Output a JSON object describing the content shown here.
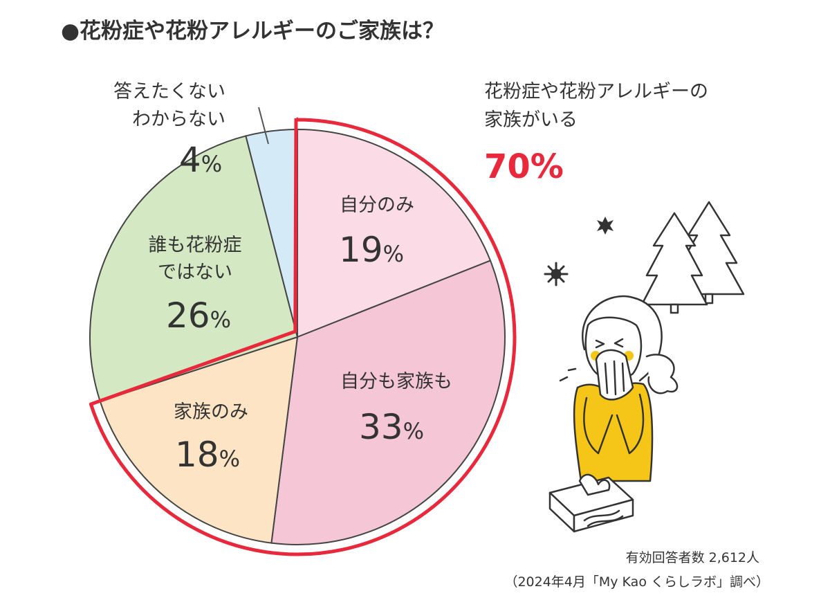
{
  "chart_data": {
    "type": "pie",
    "title": "●花粉症や花粉アレルギーのご家族は？",
    "slices": [
      {
        "label": "自分のみ",
        "value": 19,
        "value_label": "19",
        "color": "#fadbe6"
      },
      {
        "label": "自分も家族も",
        "value": 33,
        "value_label": "33",
        "color": "#f4c6d6"
      },
      {
        "label": "家族のみ",
        "value": 18,
        "value_label": "18",
        "color": "#fce4c4"
      },
      {
        "label": "誰も花粉症ではない",
        "label_lines": [
          "誰も花粉症",
          "ではない"
        ],
        "value": 26,
        "value_label": "26",
        "color": "#d3e8c3"
      },
      {
        "label": "答えたくないわからない",
        "label_lines": [
          "答えたくない",
          "わからない"
        ],
        "value": 4,
        "value_label": "4",
        "color": "#d4eaf7"
      }
    ],
    "unit": "%",
    "highlight": {
      "label_lines": [
        "花粉症や花粉アレルギーの",
        "家族がいる"
      ],
      "value": 70,
      "value_label": "70%",
      "color": "#e8293c"
    }
  },
  "footnote": {
    "line1": "有効回答者数 2,612人",
    "line2": "（2024年4月「My Kao くらしラボ」調べ）"
  },
  "illustration": {
    "icons": [
      "tree-icon",
      "pollen-icon",
      "sneezing-person-icon",
      "tissue-box-icon"
    ],
    "accent_color": "#f5c518"
  }
}
